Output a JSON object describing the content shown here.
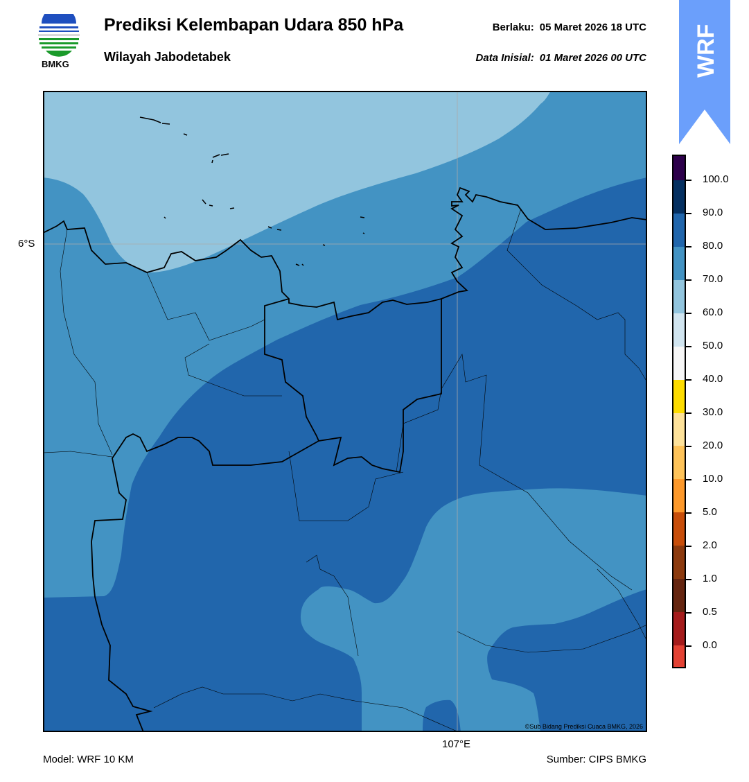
{
  "header": {
    "title": "Prediksi Kelembapan Udara 850 hPa",
    "subtitle": "Wilayah Jabodetabek",
    "valid_label": "Berlaku:",
    "valid_value": "05 Maret 2026 18 UTC",
    "init_label": "Data Inisial:",
    "init_value": "01 Maret 2026 00 UTC",
    "logo_text": "BMKG",
    "badge": "WRF"
  },
  "map": {
    "lat_tick": "6°S",
    "lon_tick": "107°E",
    "credit": "©Sub Bidang Prediksi Cuaca BMKG, 2026",
    "colors": {
      "c60_70": "#92c5de",
      "c70_80": "#4393c3",
      "c80_90": "#2166ac"
    }
  },
  "colorbar": {
    "labels": [
      "100.0",
      "90.0",
      "80.0",
      "70.0",
      "60.0",
      "50.0",
      "40.0",
      "30.0",
      "20.0",
      "10.0",
      "5.0",
      "2.0",
      "1.0",
      "0.5",
      "0.0"
    ],
    "colors": [
      "#2d004b",
      "#053061",
      "#2166ac",
      "#4393c3",
      "#92c5de",
      "#d1e5f0",
      "#f7f7f7",
      "#fddc00",
      "#fee29a",
      "#fec359",
      "#fd992b",
      "#c84e0a",
      "#8c3a0e",
      "#652510",
      "#a51c1c",
      "#e34234"
    ]
  },
  "footer": {
    "model": "Model: WRF 10 KM",
    "source": "Sumber: CIPS BMKG"
  }
}
